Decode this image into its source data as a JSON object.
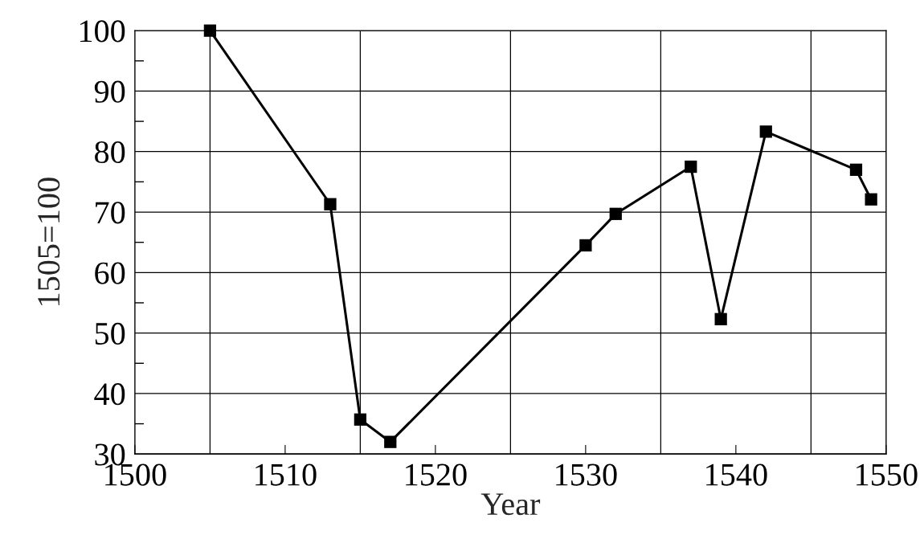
{
  "chart_data": {
    "type": "line",
    "xlabel": "Year",
    "ylabel": "1505=100",
    "x": [
      1505,
      1513,
      1515,
      1517,
      1530,
      1532,
      1537,
      1539,
      1542,
      1548,
      1549
    ],
    "series": [
      {
        "color": "#000000",
        "values": [
          100,
          71.3,
          35.7,
          32.0,
          64.5,
          69.7,
          77.5,
          52.3,
          83.3,
          77.0,
          72.1
        ]
      }
    ],
    "xlim": [
      1500,
      1550
    ],
    "xticks": [
      1500,
      {
        "value": 1505,
        "label": null
      },
      1510,
      {
        "value": 1515,
        "label": null
      },
      1520,
      {
        "value": 1525,
        "label": null
      },
      1530,
      {
        "value": 1535,
        "label": null
      },
      1540,
      {
        "value": 1545,
        "label": null
      },
      1550
    ],
    "ylim": [
      30,
      100
    ],
    "yticks": [
      30,
      {
        "value": 35,
        "label": null
      },
      40,
      {
        "value": 45,
        "label": null
      },
      50,
      {
        "value": 55,
        "label": null
      },
      60,
      {
        "value": 65,
        "label": null
      },
      70,
      {
        "value": 75,
        "label": null
      },
      80,
      {
        "value": 85,
        "label": null
      },
      90,
      {
        "value": 95,
        "label": null
      },
      100
    ],
    "grid": true,
    "marker": "square",
    "line_style": "solid"
  }
}
